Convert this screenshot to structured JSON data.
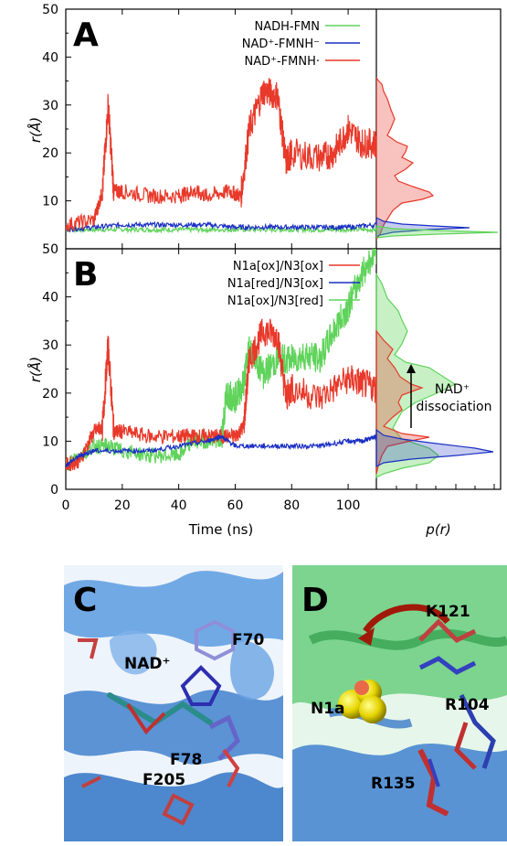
{
  "colors": {
    "red": "#e8392a",
    "blue": "#1b2fc4",
    "green": "#5fd35a",
    "protein_blue": "#4f8fd6",
    "protein_green": "#58c870"
  },
  "chart_data": [
    {
      "panel": "A",
      "type": "line",
      "xlabel": "",
      "ylabel": "r(Å)",
      "xlim": [
        0,
        110
      ],
      "ylim": [
        0,
        50
      ],
      "yticks": [
        "0",
        "10",
        "20",
        "30",
        "40",
        "50"
      ],
      "legend_position": "top-right",
      "series": [
        {
          "name": "NADH-FMN",
          "color": "green",
          "x": [
            0,
            10,
            20,
            30,
            40,
            50,
            60,
            70,
            80,
            90,
            100,
            110
          ],
          "y": [
            4,
            4,
            4,
            4,
            4,
            4,
            4,
            4,
            4,
            4,
            4,
            4
          ]
        },
        {
          "name": "NAD⁺-FMNH⁻",
          "color": "blue",
          "x": [
            0,
            10,
            20,
            30,
            40,
            50,
            60,
            70,
            80,
            90,
            100,
            110
          ],
          "y": [
            4,
            4.5,
            5,
            5,
            5,
            5,
            4.5,
            4.5,
            4.5,
            4.5,
            4.5,
            5
          ]
        },
        {
          "name": "NAD⁺-FMNH·",
          "color": "red",
          "x": [
            0,
            10,
            13,
            15,
            17,
            20,
            30,
            40,
            45,
            50,
            58,
            62,
            65,
            70,
            75,
            78,
            80,
            90,
            95,
            100,
            105,
            110
          ],
          "y": [
            5,
            6,
            12,
            30,
            12,
            12,
            11,
            11,
            12,
            11,
            12,
            11,
            25,
            33,
            32,
            18,
            20,
            19,
            20,
            25,
            22,
            22
          ]
        }
      ]
    },
    {
      "panel": "B",
      "type": "line",
      "xlabel": "Time (ns)",
      "ylabel": "r(Å)",
      "xlim": [
        0,
        110
      ],
      "ylim": [
        0,
        50
      ],
      "xticks": [
        "0",
        "20",
        "40",
        "60",
        "80",
        "100"
      ],
      "yticks": [
        "0",
        "10",
        "20",
        "30",
        "40",
        "50"
      ],
      "legend_position": "top-right",
      "series": [
        {
          "name": "N1a[ox]/N3[ox]",
          "color": "red",
          "x": [
            0,
            5,
            10,
            13,
            15,
            17,
            20,
            30,
            40,
            45,
            50,
            55,
            60,
            63,
            65,
            70,
            75,
            78,
            80,
            90,
            100,
            105,
            110
          ],
          "y": [
            5,
            6,
            12,
            13,
            30,
            12,
            12,
            11,
            11,
            11,
            11,
            11,
            11,
            13,
            27,
            33,
            32,
            19,
            21,
            19,
            23,
            22,
            21
          ]
        },
        {
          "name": "N1a[red]/N3[ox]",
          "color": "blue",
          "x": [
            0,
            5,
            10,
            20,
            30,
            40,
            50,
            55,
            60,
            70,
            80,
            90,
            100,
            105,
            110
          ],
          "y": [
            5,
            7,
            8,
            8,
            8,
            9,
            10,
            11,
            9,
            9,
            9,
            9,
            10,
            10,
            11
          ]
        },
        {
          "name": "N1a[ox]/N3[red]",
          "color": "green",
          "x": [
            0,
            5,
            10,
            15,
            20,
            30,
            40,
            45,
            50,
            55,
            57,
            60,
            63,
            65,
            70,
            75,
            80,
            85,
            90,
            95,
            100,
            105,
            110
          ],
          "y": [
            5,
            7,
            9,
            9,
            8,
            7,
            7,
            10,
            10,
            10,
            20,
            19,
            22,
            30,
            24,
            27,
            27,
            28,
            27,
            33,
            38,
            45,
            50
          ]
        }
      ]
    }
  ],
  "distribution": {
    "xlabel": "p(r)"
  },
  "annotation": {
    "line1": "NAD⁺",
    "line2": "dissociation"
  },
  "panel_labels": {
    "a": "A",
    "b": "B",
    "c": "C",
    "d": "D"
  },
  "panel_c": {
    "nad_label": "NAD⁺",
    "f70": "F70",
    "f78": "F78",
    "f205": "F205"
  },
  "panel_d": {
    "k121": "K121",
    "n1a": "N1a",
    "r104": "R104",
    "r135": "R135"
  }
}
